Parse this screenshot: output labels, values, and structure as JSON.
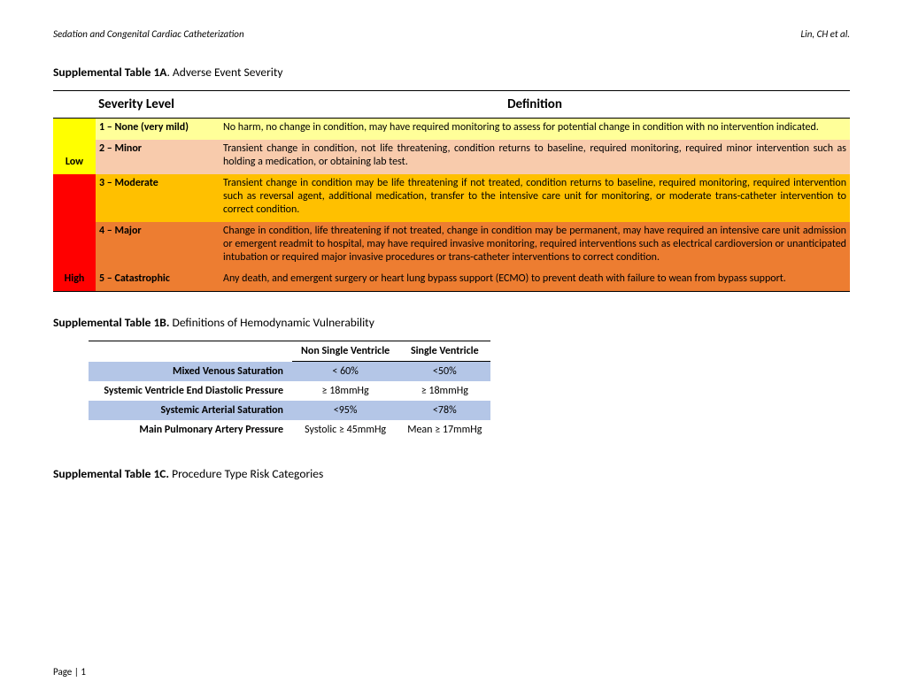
{
  "header": {
    "left": "Sedation and Congenital Cardiac Catheterization",
    "right": "Lin, CH et al."
  },
  "table1a": {
    "title_bold": "Supplemental Table 1A",
    "title_rest": ". Adverse Event Severity",
    "col1_header": "Severity Level",
    "col2_header": "Definition",
    "side": {
      "low": "Low",
      "high": "High"
    },
    "colors": {
      "side_low": "#ffff00",
      "side_high": "#ff0000",
      "row1_level": "#ffff99",
      "row1_def": "#ffff99",
      "row2_level": "#f8cbac",
      "row2_def": "#f8cbac",
      "row3_level": "#ffc000",
      "row3_def": "#ffc000",
      "row4_level": "#ed7d31",
      "row4_def": "#ed7d31",
      "row5_level": "#ed7d31",
      "row5_def": "#ed7d31"
    },
    "rows": [
      {
        "level": "1 – None (very mild)",
        "def": "No harm, no change in condition, may have required monitoring to assess for potential change in condition with no intervention indicated."
      },
      {
        "level": "2 – Minor",
        "def": "Transient change in condition, not life threatening, condition returns to baseline, required monitoring, required minor intervention such as holding a medication, or obtaining lab test."
      },
      {
        "level": "3 – Moderate",
        "def": "Transient change in condition may be life threatening if not treated, condition returns to baseline, required monitoring, required intervention such as reversal agent, additional medication, transfer to the intensive care unit for monitoring, or moderate trans-catheter intervention to correct condition."
      },
      {
        "level": "4 – Major",
        "def": "Change in condition, life threatening if not treated, change in condition may be permanent, may have required an intensive care unit admission or emergent readmit to hospital, may have required invasive monitoring, required interventions such as electrical cardioversion or unanticipated intubation or required major invasive procedures or trans-catheter interventions to correct condition."
      },
      {
        "level": "5 – Catastrophic",
        "def": "Any death, and emergent surgery or heart lung bypass support (ECMO) to prevent death with failure to wean from bypass support."
      }
    ]
  },
  "table1b": {
    "title_bold": "Supplemental Table 1B.",
    "title_rest": "  Definitions of Hemodynamic Vulnerability",
    "col_nsv": "Non Single Ventricle",
    "col_sv": "Single Ventricle",
    "colors": {
      "shaded": "#b4c6e7",
      "plain": "#ffffff"
    },
    "rows": [
      {
        "label": "Mixed Venous Saturation",
        "nsv": "< 60%",
        "sv": "<50%",
        "shaded": true
      },
      {
        "label": "Systemic Ventricle End Diastolic Pressure",
        "nsv": "≥ 18mmHg",
        "sv": "≥ 18mmHg",
        "shaded": false
      },
      {
        "label": "Systemic Arterial Saturation",
        "nsv": "<95%",
        "sv": "<78%",
        "shaded": true
      },
      {
        "label": "Main Pulmonary Artery Pressure",
        "nsv": "Systolic ≥ 45mmHg",
        "sv": "Mean ≥ 17mmHg",
        "shaded": false
      }
    ]
  },
  "table1c": {
    "title_bold": "Supplemental Table 1C.",
    "title_rest": "  Procedure Type Risk Categories"
  },
  "footer": {
    "text": "Page | 1"
  }
}
